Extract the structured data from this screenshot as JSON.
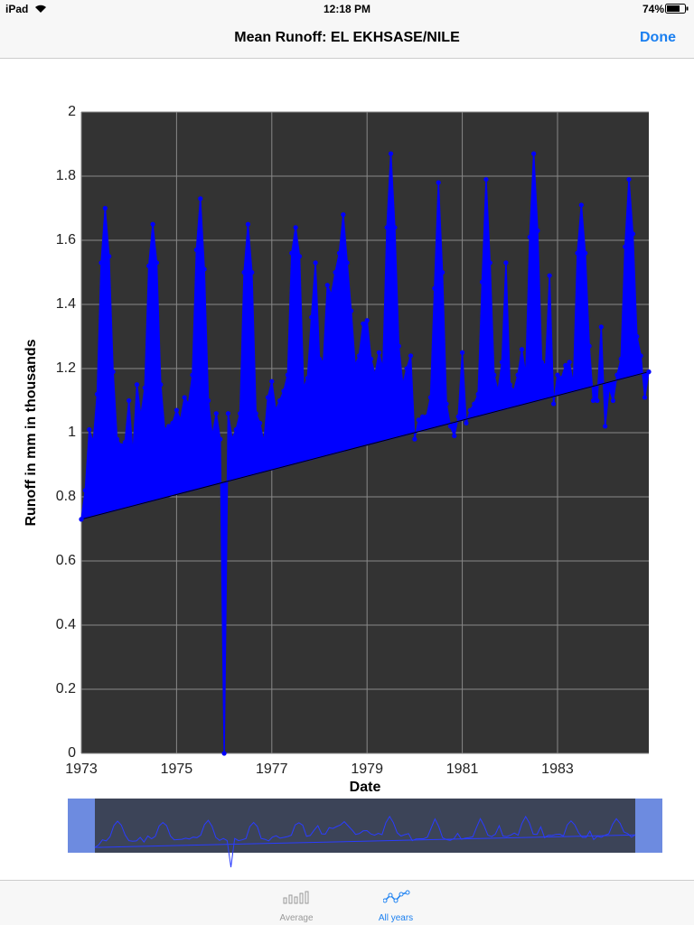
{
  "status_bar": {
    "device": "iPad",
    "time": "12:18 PM",
    "battery": "74%"
  },
  "nav_bar": {
    "title": "Mean Runoff: EL EKHSASE/NILE",
    "done": "Done"
  },
  "chart_data": {
    "type": "area",
    "x_label": "Date",
    "y_label": "Runoff in mm in thousands",
    "xlim": [
      1973,
      1984.917
    ],
    "xticks": [
      1973,
      1975,
      1977,
      1979,
      1981,
      1983
    ],
    "ylim": [
      0,
      2
    ],
    "yticks": [
      0,
      0.2,
      0.4,
      0.6,
      0.8,
      1,
      1.2,
      1.4,
      1.6,
      1.8,
      2
    ],
    "grid": true,
    "series": [
      {
        "color": "#0000ff",
        "x": [
          1973,
          1973.083,
          1973.167,
          1973.25,
          1973.333,
          1973.417,
          1973.5,
          1973.583,
          1973.667,
          1973.75,
          1973.833,
          1973.917,
          1974,
          1974.083,
          1974.167,
          1974.25,
          1974.333,
          1974.417,
          1974.5,
          1974.583,
          1974.667,
          1974.75,
          1974.833,
          1974.917,
          1975,
          1975.083,
          1975.167,
          1975.25,
          1975.333,
          1975.417,
          1975.5,
          1975.583,
          1975.667,
          1975.75,
          1975.833,
          1975.917,
          1976,
          1976.083,
          1976.167,
          1976.25,
          1976.333,
          1976.417,
          1976.5,
          1976.583,
          1976.667,
          1976.75,
          1976.833,
          1976.917,
          1977,
          1977.083,
          1977.167,
          1977.25,
          1977.333,
          1977.417,
          1977.5,
          1977.583,
          1977.667,
          1977.75,
          1977.833,
          1977.917,
          1978,
          1978.083,
          1978.167,
          1978.25,
          1978.333,
          1978.417,
          1978.5,
          1978.583,
          1978.667,
          1978.75,
          1978.833,
          1978.917,
          1979,
          1979.083,
          1979.167,
          1979.25,
          1979.333,
          1979.417,
          1979.5,
          1979.583,
          1979.667,
          1979.75,
          1979.833,
          1979.917,
          1980,
          1980.083,
          1980.167,
          1980.25,
          1980.333,
          1980.417,
          1980.5,
          1980.583,
          1980.667,
          1980.75,
          1980.833,
          1980.917,
          1981,
          1981.083,
          1981.167,
          1981.25,
          1981.333,
          1981.417,
          1981.5,
          1981.583,
          1981.667,
          1981.75,
          1981.833,
          1981.917,
          1982,
          1982.083,
          1982.167,
          1982.25,
          1982.333,
          1982.417,
          1982.5,
          1982.583,
          1982.667,
          1982.75,
          1982.833,
          1982.917,
          1983,
          1983.083,
          1983.167,
          1983.25,
          1983.333,
          1983.417,
          1983.5,
          1983.583,
          1983.667,
          1983.75,
          1983.833,
          1983.917,
          1984,
          1984.083,
          1984.167,
          1984.25,
          1984.333,
          1984.417,
          1984.5,
          1984.583,
          1984.667,
          1984.75,
          1984.833,
          1984.917
        ],
        "values": [
          0.73,
          0.82,
          1.01,
          0.97,
          1.12,
          1.53,
          1.7,
          1.55,
          1.19,
          0.98,
          0.96,
          0.97,
          1.1,
          0.93,
          1.15,
          1.05,
          1.14,
          1.52,
          1.65,
          1.53,
          1.15,
          1.01,
          1.02,
          1.03,
          1.07,
          1.04,
          1.11,
          1.09,
          1.18,
          1.57,
          1.73,
          1.51,
          1.1,
          0.99,
          1.06,
          0.98,
          0,
          1.06,
          0.98,
          1.01,
          1.06,
          1.5,
          1.65,
          1.5,
          1.06,
          1.03,
          0.97,
          1.11,
          1.16,
          1.07,
          1.1,
          1.13,
          1.18,
          1.56,
          1.64,
          1.55,
          1.14,
          1.17,
          1.36,
          1.53,
          1.23,
          1.22,
          1.46,
          1.43,
          1.5,
          1.56,
          1.68,
          1.53,
          1.38,
          1.21,
          1.24,
          1.34,
          1.35,
          1.23,
          1.18,
          1.25,
          1.2,
          1.64,
          1.87,
          1.64,
          1.27,
          1.15,
          1.2,
          1.24,
          0.98,
          1.04,
          1.05,
          1.05,
          1.11,
          1.45,
          1.78,
          1.5,
          1.09,
          1.02,
          0.99,
          1.05,
          1.25,
          1.03,
          1.07,
          1.09,
          1.12,
          1.47,
          1.79,
          1.53,
          1.18,
          1.13,
          1.22,
          1.53,
          1.15,
          1.13,
          1.18,
          1.26,
          1.18,
          1.61,
          1.87,
          1.63,
          1.22,
          1.21,
          1.49,
          1.09,
          1.18,
          1.17,
          1.21,
          1.22,
          1.15,
          1.56,
          1.71,
          1.56,
          1.27,
          1.1,
          1.1,
          1.33,
          1.02,
          1.14,
          1.1,
          1.18,
          1.23,
          1.58,
          1.79,
          1.62,
          1.3,
          1.24,
          1.11,
          1.19
        ]
      },
      {
        "color": "#0000ff",
        "x": [
          1973,
          1984.917
        ],
        "values": [
          0.73,
          1.19
        ]
      }
    ]
  },
  "tab_bar": {
    "tabs": [
      "Average",
      "All years"
    ]
  }
}
